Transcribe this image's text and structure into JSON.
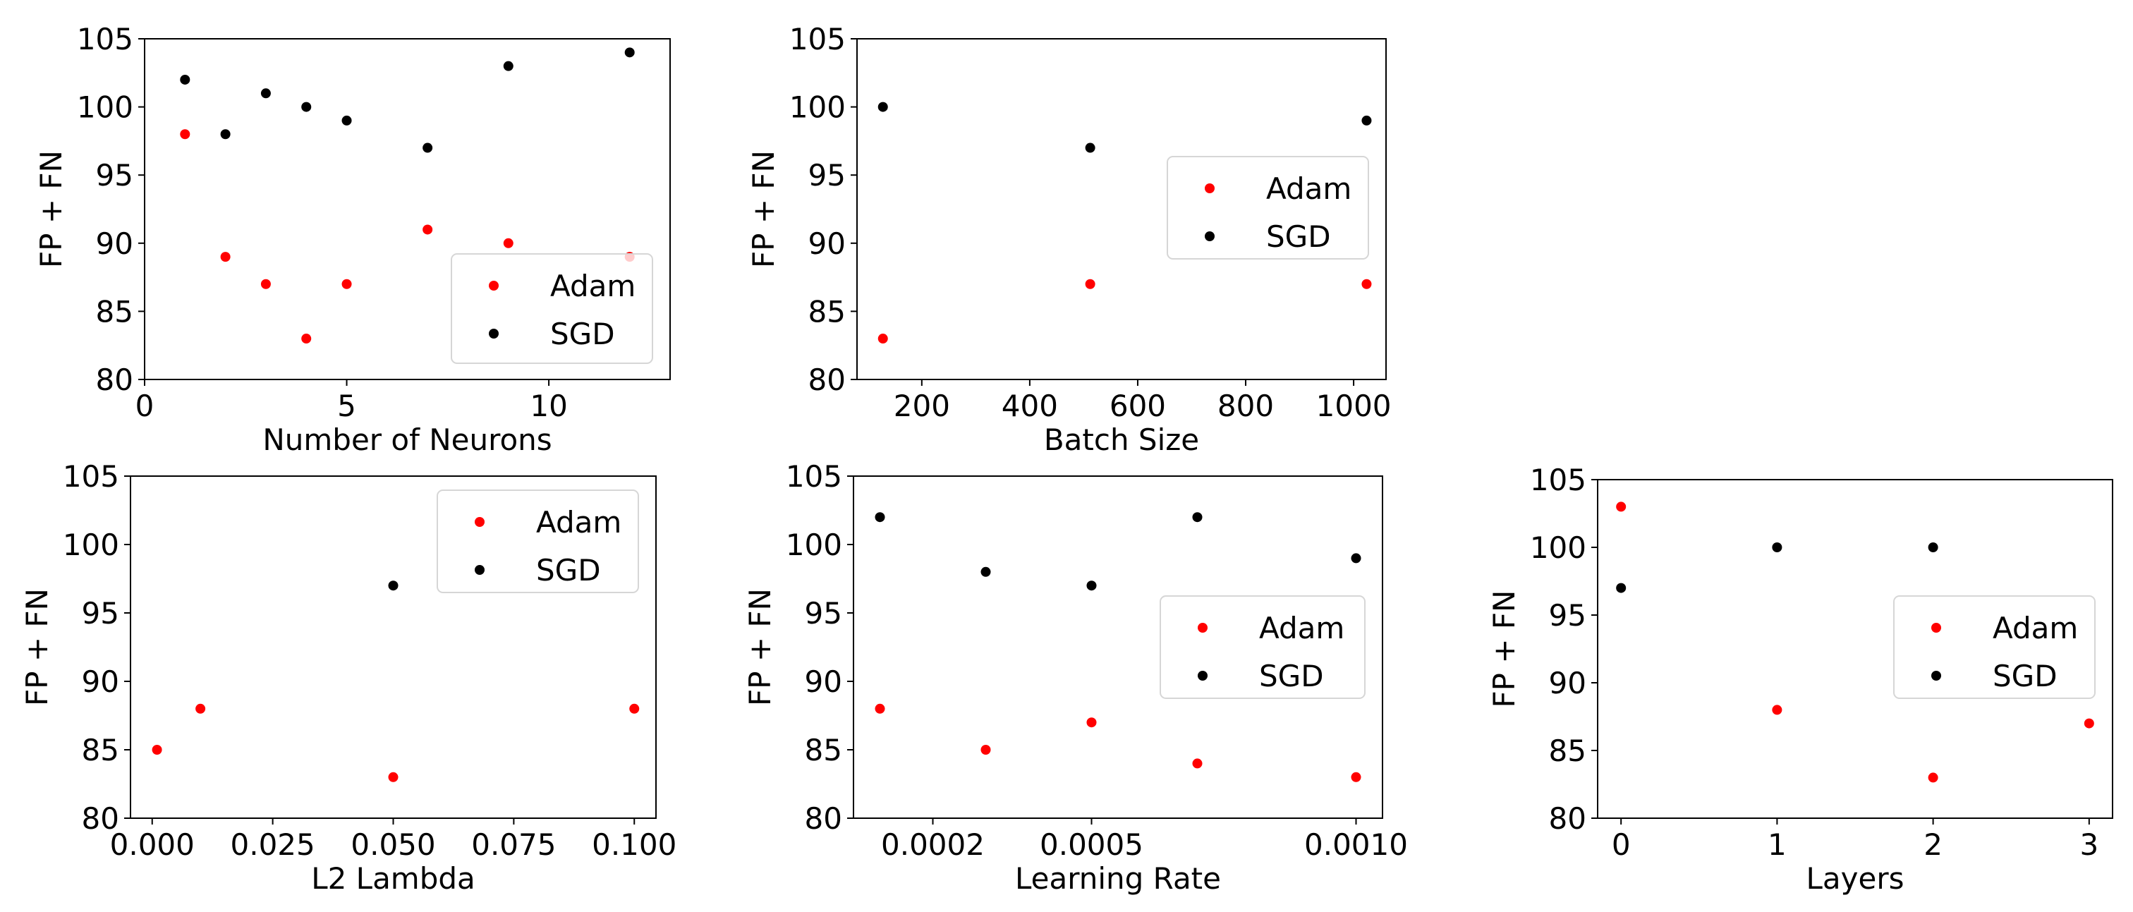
{
  "chart_data": [
    {
      "type": "scatter",
      "xlabel": "Number of Neurons",
      "ylabel": "FP + FN",
      "xlim": [
        0,
        13
      ],
      "ylim": [
        80,
        105
      ],
      "xticks": [
        0,
        5,
        10
      ],
      "xtick_labels": [
        "0",
        "5",
        "10"
      ],
      "yticks": [
        80,
        85,
        90,
        95,
        100,
        105
      ],
      "ytick_labels": [
        "80",
        "85",
        "90",
        "95",
        "100",
        "105"
      ],
      "legend_position": "lower-right",
      "series": [
        {
          "name": "Adam",
          "color": "#ff0000",
          "x": [
            1,
            2,
            3,
            4,
            5,
            7,
            9,
            12
          ],
          "y": [
            98,
            89,
            87,
            83,
            87,
            91,
            90,
            89
          ]
        },
        {
          "name": "SGD",
          "color": "#000000",
          "x": [
            1,
            2,
            3,
            4,
            5,
            7,
            9,
            12
          ],
          "y": [
            102,
            98,
            101,
            100,
            99,
            97,
            103,
            104
          ]
        }
      ]
    },
    {
      "type": "scatter",
      "xlabel": "Batch Size",
      "ylabel": "FP + FN",
      "xlim": [
        80,
        1060
      ],
      "ylim": [
        80,
        105
      ],
      "xticks": [
        200,
        400,
        600,
        800,
        1000
      ],
      "xtick_labels": [
        "200",
        "400",
        "600",
        "800",
        "1000"
      ],
      "yticks": [
        80,
        85,
        90,
        95,
        100,
        105
      ],
      "ytick_labels": [
        "80",
        "85",
        "90",
        "95",
        "100",
        "105"
      ],
      "legend_position": "center-right",
      "series": [
        {
          "name": "Adam",
          "color": "#ff0000",
          "x": [
            128,
            512,
            1024
          ],
          "y": [
            83,
            87,
            87
          ]
        },
        {
          "name": "SGD",
          "color": "#000000",
          "x": [
            128,
            512,
            1024
          ],
          "y": [
            100,
            97,
            99
          ]
        }
      ]
    },
    {
      "type": "scatter",
      "xlabel": "L2 Lambda",
      "ylabel": "FP + FN",
      "xlim": [
        -0.0045,
        0.1045
      ],
      "ylim": [
        80,
        105
      ],
      "xticks": [
        0.0,
        0.025,
        0.05,
        0.075,
        0.1
      ],
      "xtick_labels": [
        "0.000",
        "0.025",
        "0.050",
        "0.075",
        "0.100"
      ],
      "yticks": [
        80,
        85,
        90,
        95,
        100,
        105
      ],
      "ytick_labels": [
        "80",
        "85",
        "90",
        "95",
        "100",
        "105"
      ],
      "legend_position": "upper-right",
      "series": [
        {
          "name": "Adam",
          "color": "#ff0000",
          "x": [
            0.001,
            0.01,
            0.05,
            0.1
          ],
          "y": [
            85,
            88,
            83,
            88
          ]
        },
        {
          "name": "SGD",
          "color": "#000000",
          "x": [
            0.05
          ],
          "y": [
            97
          ]
        }
      ]
    },
    {
      "type": "scatter",
      "xlabel": "Learning Rate",
      "ylabel": "FP + FN",
      "xlim": [
        5e-05,
        0.00105
      ],
      "ylim": [
        80,
        105
      ],
      "xticks": [
        0.0002,
        0.0005,
        0.001
      ],
      "xtick_labels": [
        "0.0002",
        "0.0005",
        "0.0010"
      ],
      "yticks": [
        80,
        85,
        90,
        95,
        100,
        105
      ],
      "ytick_labels": [
        "80",
        "85",
        "90",
        "95",
        "100",
        "105"
      ],
      "legend_position": "center-right",
      "series": [
        {
          "name": "Adam",
          "color": "#ff0000",
          "x": [
            0.0001,
            0.0003,
            0.0005,
            0.0007,
            0.001
          ],
          "y": [
            88,
            85,
            87,
            84,
            83
          ]
        },
        {
          "name": "SGD",
          "color": "#000000",
          "x": [
            0.0001,
            0.0003,
            0.0005,
            0.0007,
            0.001
          ],
          "y": [
            102,
            98,
            97,
            102,
            99
          ]
        }
      ]
    },
    {
      "type": "scatter",
      "xlabel": "Layers",
      "ylabel": "FP + FN",
      "xlim": [
        -0.15,
        3.15
      ],
      "ylim": [
        80,
        105
      ],
      "xticks": [
        0,
        1,
        2,
        3
      ],
      "xtick_labels": [
        "0",
        "1",
        "2",
        "3"
      ],
      "yticks": [
        80,
        85,
        90,
        95,
        100,
        105
      ],
      "ytick_labels": [
        "80",
        "85",
        "90",
        "95",
        "100",
        "105"
      ],
      "legend_position": "center-right",
      "series": [
        {
          "name": "Adam",
          "color": "#ff0000",
          "x": [
            0,
            1,
            2,
            3
          ],
          "y": [
            103,
            88,
            83,
            87
          ]
        },
        {
          "name": "SGD",
          "color": "#000000",
          "x": [
            0,
            1,
            2
          ],
          "y": [
            97,
            100,
            100
          ]
        }
      ]
    }
  ]
}
